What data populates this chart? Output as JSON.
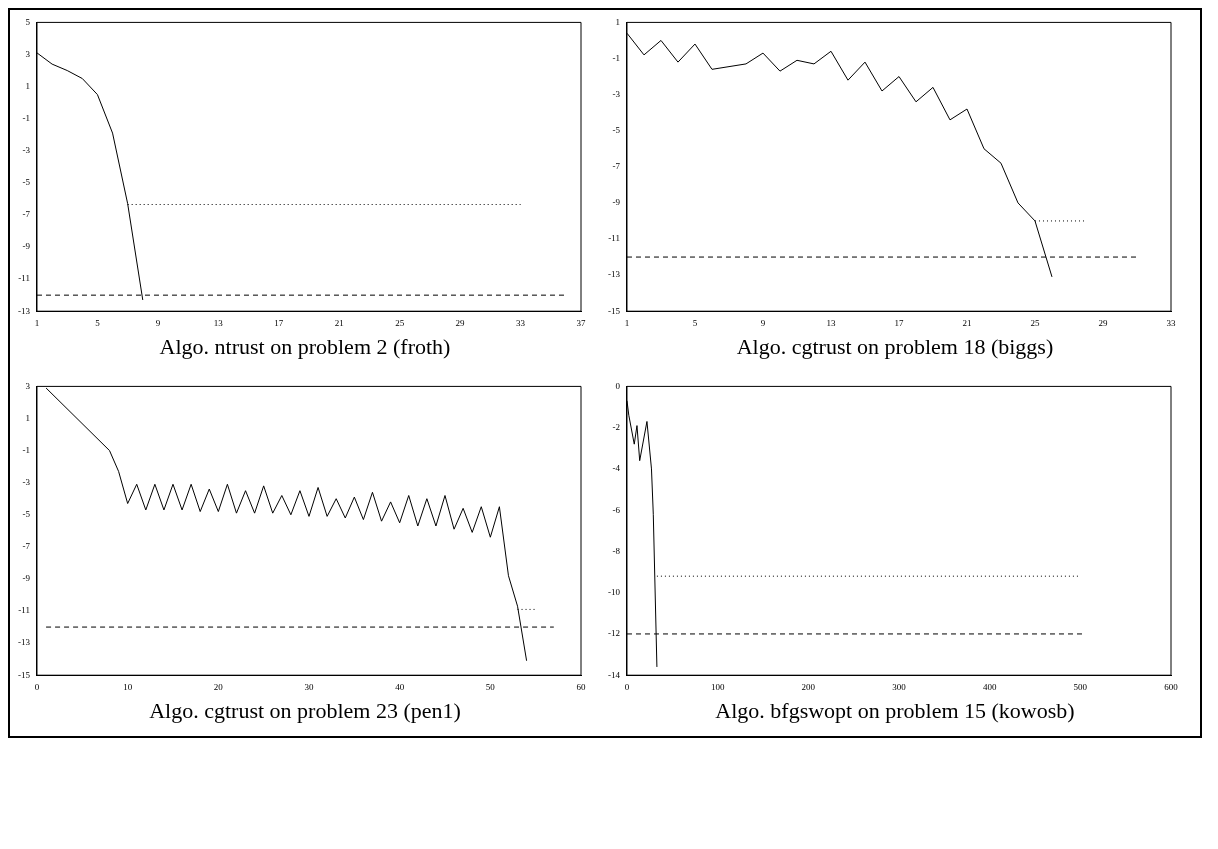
{
  "chart_data": [
    {
      "type": "line",
      "title": "Algo. ntrust on problem 2 (froth)",
      "xlim": [
        1,
        37
      ],
      "xticks": [
        1,
        5,
        9,
        13,
        17,
        21,
        25,
        29,
        33,
        37
      ],
      "ylim": [
        -13,
        5
      ],
      "yticks": [
        5,
        3,
        1,
        -1,
        -3,
        -5,
        -7,
        -9,
        -11,
        -13
      ],
      "grid": false,
      "legend": false,
      "marker": "none",
      "series": [
        {
          "color": "#000000",
          "line_style": "solid",
          "x": [
            1,
            2,
            3,
            4,
            5,
            6,
            7,
            8
          ],
          "values": [
            3.1,
            2.4,
            2.0,
            1.5,
            0.5,
            -1.9,
            -6.3,
            -12.3
          ]
        },
        {
          "color": "#000000",
          "line_style": "dotted",
          "x": [
            7,
            33
          ],
          "values": [
            -6.35,
            -6.35
          ]
        },
        {
          "color": "#000000",
          "line_style": "dashed",
          "x": [
            1,
            36
          ],
          "values": [
            -12,
            -12
          ]
        }
      ]
    },
    {
      "type": "line",
      "title": "Algo. cgtrust on problem 18 (biggs)",
      "xlim": [
        1,
        33
      ],
      "xticks": [
        1,
        5,
        9,
        13,
        17,
        21,
        25,
        29,
        33
      ],
      "ylim": [
        -15,
        1
      ],
      "yticks": [
        1,
        -1,
        -3,
        -5,
        -7,
        -9,
        -11,
        -13,
        -15
      ],
      "grid": false,
      "legend": false,
      "marker": "none",
      "series": [
        {
          "color": "#000000",
          "line_style": "solid",
          "x": [
            1,
            2,
            3,
            4,
            5,
            6,
            8,
            9,
            10,
            11,
            12,
            13,
            14,
            15,
            16,
            17,
            18,
            19,
            20,
            21,
            22,
            23,
            24,
            25,
            26
          ],
          "values": [
            0.4,
            -0.8,
            0.0,
            -1.2,
            -0.2,
            -1.6,
            -1.3,
            -0.7,
            -1.7,
            -1.1,
            -1.3,
            -0.6,
            -2.2,
            -1.2,
            -2.8,
            -2.0,
            -3.4,
            -2.6,
            -4.4,
            -3.8,
            -6.0,
            -6.8,
            -9.0,
            -10.0,
            -13.1
          ]
        },
        {
          "color": "#000000",
          "line_style": "dotted",
          "x": [
            25,
            28
          ],
          "values": [
            -10,
            -10
          ]
        },
        {
          "color": "#000000",
          "line_style": "dashed",
          "x": [
            1,
            31
          ],
          "values": [
            -12,
            -12
          ]
        }
      ]
    },
    {
      "type": "line",
      "title": "Algo. cgtrust on problem 23 (pen1)",
      "xlim": [
        0,
        60
      ],
      "xticks": [
        0,
        10,
        20,
        30,
        40,
        50,
        60
      ],
      "ylim": [
        -15,
        3
      ],
      "yticks": [
        3,
        1,
        -1,
        -3,
        -5,
        -7,
        -9,
        -11,
        -13,
        -15
      ],
      "grid": false,
      "legend": false,
      "marker": "none",
      "series": [
        {
          "color": "#000000",
          "line_style": "solid",
          "x": [
            1,
            8,
            9,
            10,
            11,
            12,
            13,
            14,
            15,
            16,
            17,
            18,
            19,
            20,
            21,
            22,
            23,
            24,
            25,
            26,
            27,
            28,
            29,
            30,
            31,
            32,
            33,
            34,
            35,
            36,
            37,
            38,
            39,
            40,
            41,
            42,
            43,
            44,
            45,
            46,
            47,
            48,
            49,
            50,
            51,
            52,
            53,
            54
          ],
          "values": [
            2.9,
            -1.0,
            -2.3,
            -4.3,
            -3.1,
            -4.7,
            -3.1,
            -4.7,
            -3.1,
            -4.7,
            -3.1,
            -4.8,
            -3.4,
            -4.8,
            -3.1,
            -4.9,
            -3.5,
            -4.9,
            -3.2,
            -4.9,
            -3.8,
            -5.0,
            -3.5,
            -5.1,
            -3.3,
            -5.1,
            -4.0,
            -5.2,
            -3.9,
            -5.3,
            -3.6,
            -5.4,
            -4.2,
            -5.5,
            -3.8,
            -5.7,
            -4.0,
            -5.7,
            -3.8,
            -5.9,
            -4.6,
            -6.1,
            -4.5,
            -6.4,
            -4.5,
            -8.8,
            -10.7,
            -14.1
          ]
        },
        {
          "color": "#000000",
          "line_style": "dotted",
          "x": [
            53,
            55
          ],
          "values": [
            -10.9,
            -10.9
          ]
        },
        {
          "color": "#000000",
          "line_style": "dashed",
          "x": [
            1,
            57
          ],
          "values": [
            -12,
            -12
          ]
        }
      ]
    },
    {
      "type": "line",
      "title": "Algo. bfgswopt on problem 15 (kowosb)",
      "xlim": [
        0,
        600
      ],
      "xticks": [
        0,
        100,
        200,
        300,
        400,
        500,
        600
      ],
      "ylim": [
        -14,
        0
      ],
      "yticks": [
        0,
        -2,
        -4,
        -6,
        -8,
        -10,
        -12,
        -14
      ],
      "grid": false,
      "legend": false,
      "marker": "none",
      "series": [
        {
          "color": "#000000",
          "line_style": "solid",
          "x": [
            0,
            2,
            8,
            11,
            14,
            22,
            27,
            29,
            33
          ],
          "values": [
            -0.7,
            -1.4,
            -2.8,
            -1.9,
            -3.6,
            -1.7,
            -4.0,
            -6.2,
            -13.6
          ]
        },
        {
          "color": "#000000",
          "line_style": "dotted",
          "x": [
            33,
            500
          ],
          "values": [
            -9.2,
            -9.2
          ]
        },
        {
          "color": "#000000",
          "line_style": "dashed",
          "x": [
            0,
            505
          ],
          "values": [
            -12,
            -12
          ]
        }
      ]
    }
  ]
}
